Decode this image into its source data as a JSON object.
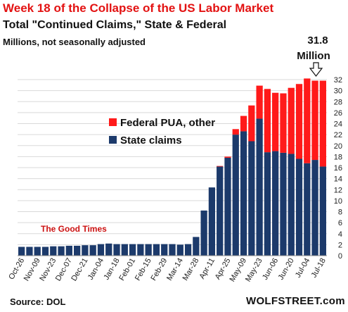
{
  "title": "Week 18 of the Collapse of the US Labor Market",
  "subtitle": "Total \"Continued Claims,\" State & Federal",
  "unit_note": "Millions, not seasonally adjusted",
  "source": "Source: DOL",
  "brand": "WOLFSTREET.com",
  "colors": {
    "state": "#1c3a6b",
    "federal": "#ff1a1a",
    "title": "#e31212",
    "good_times": "#cc1111"
  },
  "chart_data": {
    "type": "bar",
    "stacked": true,
    "categories": [
      "Oct-26",
      "Nov-02",
      "Nov-09",
      "Nov-16",
      "Nov-23",
      "Nov-30",
      "Dec-07",
      "Dec-14",
      "Dec-21",
      "Dec-28",
      "Jan-04",
      "Jan-11",
      "Jan-18",
      "Jan-25",
      "Feb-01",
      "Feb-08",
      "Feb-15",
      "Feb-22",
      "Feb-29",
      "Mar-07",
      "Mar-14",
      "Mar-21",
      "Mar-28",
      "Apr-04",
      "Apr-11",
      "Apr-18",
      "Apr-25",
      "May-02",
      "May-09",
      "May-16",
      "May-23",
      "May-30",
      "Jun-06",
      "Jun-13",
      "Jun-20",
      "Jun-27",
      "Jul-04",
      "Jul-11",
      "Jul-18"
    ],
    "tick_labels": [
      "Oct-26",
      "Nov-09",
      "Nov-23",
      "Dec-07",
      "Dec-21",
      "Jan-04",
      "Jan-18",
      "Feb-01",
      "Feb-15",
      "Feb-29",
      "Mar-14",
      "Mar-28",
      "Apr-11",
      "Apr-25",
      "May-09",
      "May-23",
      "Jun-06",
      "Jun-20",
      "Jul-04",
      "Jul-18"
    ],
    "series": [
      {
        "name": "State claims",
        "values": [
          1.6,
          1.6,
          1.6,
          1.6,
          1.7,
          1.7,
          1.8,
          1.8,
          1.9,
          1.9,
          2.1,
          2.2,
          2.1,
          2.1,
          2.1,
          2.1,
          2.1,
          2.1,
          2.1,
          2.1,
          2.0,
          2.1,
          3.4,
          8.2,
          12.4,
          16.2,
          17.8,
          22.0,
          22.6,
          20.8,
          24.9,
          18.8,
          19.0,
          18.7,
          18.5,
          17.6,
          16.8,
          17.4,
          16.2
        ]
      },
      {
        "name": "Federal PUA, other",
        "values": [
          0,
          0,
          0,
          0,
          0,
          0,
          0,
          0,
          0,
          0,
          0,
          0,
          0,
          0,
          0,
          0,
          0,
          0,
          0,
          0,
          0,
          0,
          0,
          0,
          0,
          0.1,
          0.2,
          1.0,
          2.8,
          6.5,
          6.0,
          11.5,
          10.6,
          10.8,
          12.0,
          13.6,
          15.4,
          14.4,
          15.6
        ]
      }
    ],
    "ylim": [
      0,
      32
    ],
    "yticks": [
      0,
      2,
      4,
      6,
      8,
      10,
      12,
      14,
      16,
      18,
      20,
      22,
      24,
      26,
      28,
      30,
      32
    ],
    "annotations": {
      "last_value": "31.8",
      "last_value_unit": "Million",
      "good_times": "The Good Times"
    }
  }
}
